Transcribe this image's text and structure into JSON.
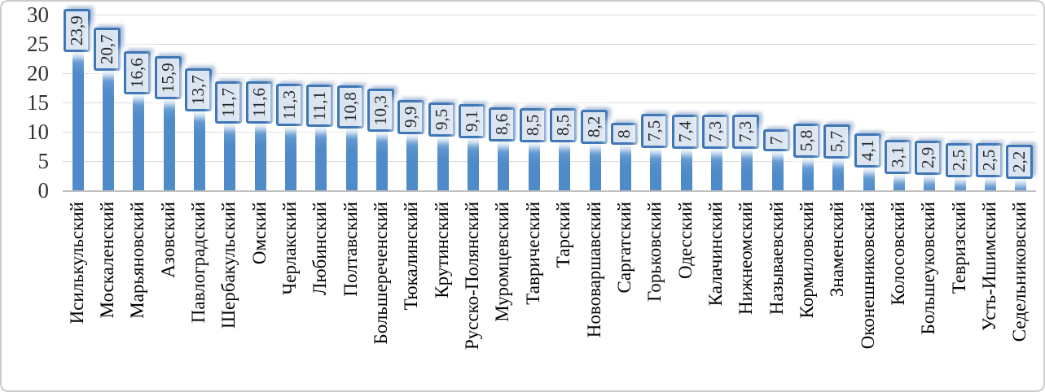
{
  "chart_data": {
    "type": "bar",
    "title": "",
    "xlabel": "",
    "ylabel": "",
    "categories": [
      "Исилькульский",
      "Москаленский",
      "Марьяновский",
      "Азовский",
      "Павлоградский",
      "Шербакульский",
      "Омский",
      "Черлакский",
      "Любинский",
      "Полтавский",
      "Большереченский",
      "Тюкалинский",
      "Крутинский",
      "Русско-Полянский",
      "Муромцевский",
      "Таврический",
      "Тарский",
      "Нововаршавский",
      "Саргатский",
      "Горьковский",
      "Одесский",
      "Калачинский",
      "Нижнеомский",
      "Называевский",
      "Кормиловский",
      "Знаменский",
      "Оконешниковский",
      "Колосовский",
      "Большеуковский",
      "Тевризский",
      "Усть-Ишимский",
      "Седельниковский"
    ],
    "values": [
      23.9,
      20.7,
      16.6,
      15.9,
      13.7,
      11.7,
      11.6,
      11.3,
      11.1,
      10.8,
      10.3,
      9.9,
      9.5,
      9.1,
      8.6,
      8.5,
      8.5,
      8.2,
      8,
      7.5,
      7.4,
      7.3,
      7.3,
      7,
      5.8,
      5.7,
      4.1,
      3.1,
      2.9,
      2.5,
      2.5,
      2.2
    ],
    "value_labels": [
      "23,9",
      "20,7",
      "16,6",
      "15,9",
      "13,7",
      "11,7",
      "11,6",
      "11,3",
      "11,1",
      "10,8",
      "10,3",
      "9,9",
      "9,5",
      "9,1",
      "8,6",
      "8,5",
      "8,5",
      "8,2",
      "8",
      "7,5",
      "7,4",
      "7,3",
      "7,3",
      "7",
      "5,8",
      "5,7",
      "4,1",
      "3,1",
      "2,9",
      "2,5",
      "2,5",
      "2,2"
    ],
    "ylim": [
      0,
      30
    ],
    "yticks": [
      0,
      5,
      10,
      15,
      20,
      25,
      30
    ],
    "grid": true,
    "legend": "none",
    "colors": {
      "bar": "#4e8bc8",
      "bar_top_fade": "#aecbe8",
      "data_label_fill": "#dbe5f1",
      "data_label_border": "#3f76b6",
      "data_label_text": "#262626",
      "gridline": "#d9d9d9",
      "axis_line": "#bfbfbf",
      "axis_text": "#333333",
      "frame_border": "#cbcbcb"
    }
  }
}
